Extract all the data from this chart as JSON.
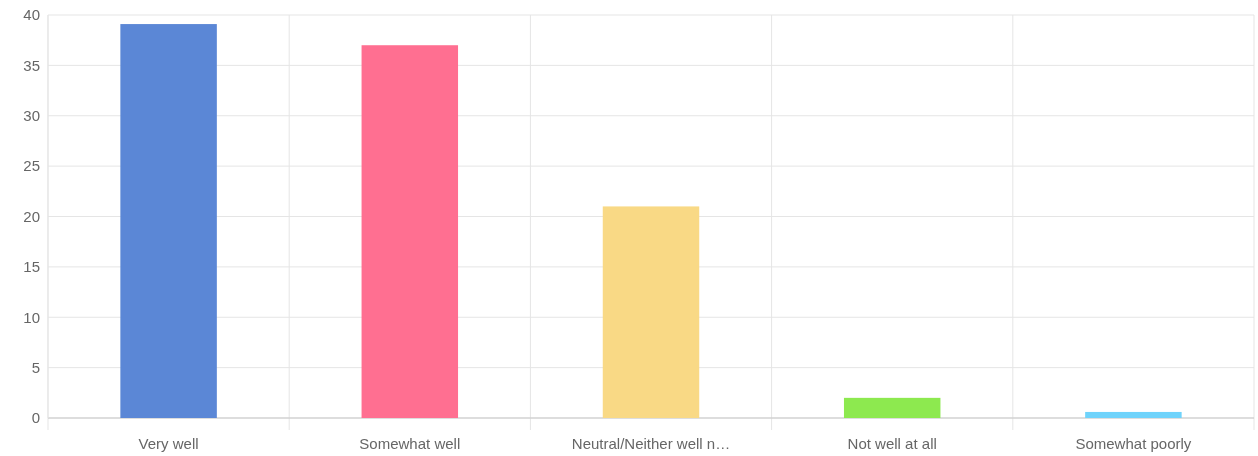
{
  "chart_data": {
    "type": "bar",
    "categories": [
      "Very well",
      "Somewhat well",
      "Neutral/Neither well n…",
      "Not well at all",
      "Somewhat poorly"
    ],
    "values": [
      39.1,
      37,
      21,
      2,
      0.6
    ],
    "colors": [
      "#5b87d6",
      "#ff6f91",
      "#f9d985",
      "#8de94f",
      "#6fd3fb"
    ],
    "ylim": [
      0,
      40
    ],
    "yticks": [
      0,
      5,
      10,
      15,
      20,
      25,
      30,
      35,
      40
    ],
    "grid": true
  }
}
